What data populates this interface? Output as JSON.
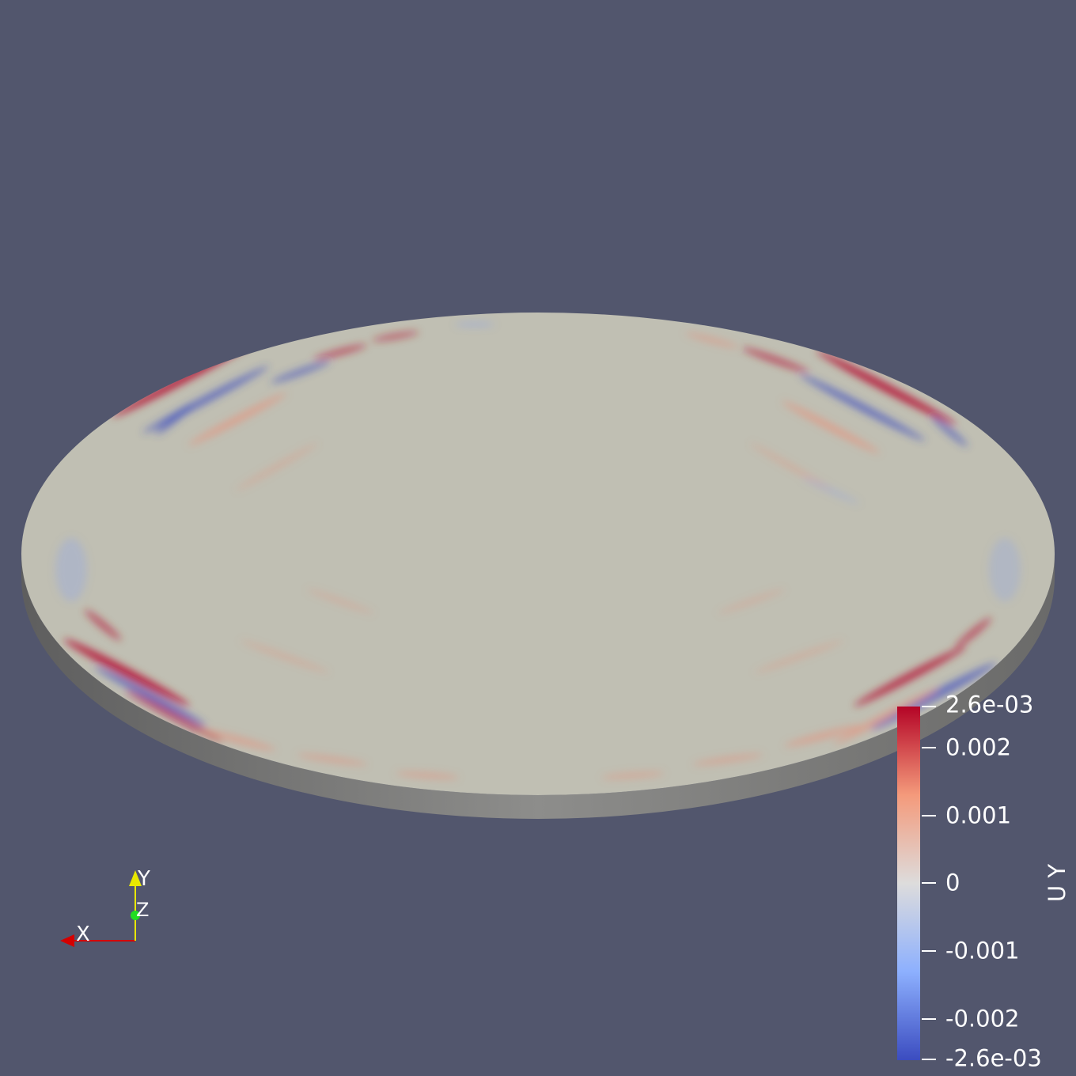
{
  "colors": {
    "background": "#52566d",
    "disk_neutral": "#c0bfb3",
    "disk_side": "#8a8a88",
    "red": "#b40426",
    "blue": "#3b4cc0",
    "white": "#dddcdc",
    "x_axis": "#d40000",
    "y_axis": "#e8e800",
    "z_axis": "#22dd22"
  },
  "scalar_bar": {
    "title": "U Y",
    "max_label": "2.6e-03",
    "min_label": "-2.6e-03",
    "range": [
      -0.0026,
      0.0026
    ],
    "ticks": [
      {
        "value": 0.002,
        "label": "0.002"
      },
      {
        "value": 0.001,
        "label": "0.001"
      },
      {
        "value": 0,
        "label": "0"
      },
      {
        "value": -0.001,
        "label": "-0.001"
      },
      {
        "value": -0.002,
        "label": "-0.002"
      }
    ]
  },
  "orientation_axes": {
    "x_label": "X",
    "y_label": "Y",
    "z_label": "Z"
  }
}
